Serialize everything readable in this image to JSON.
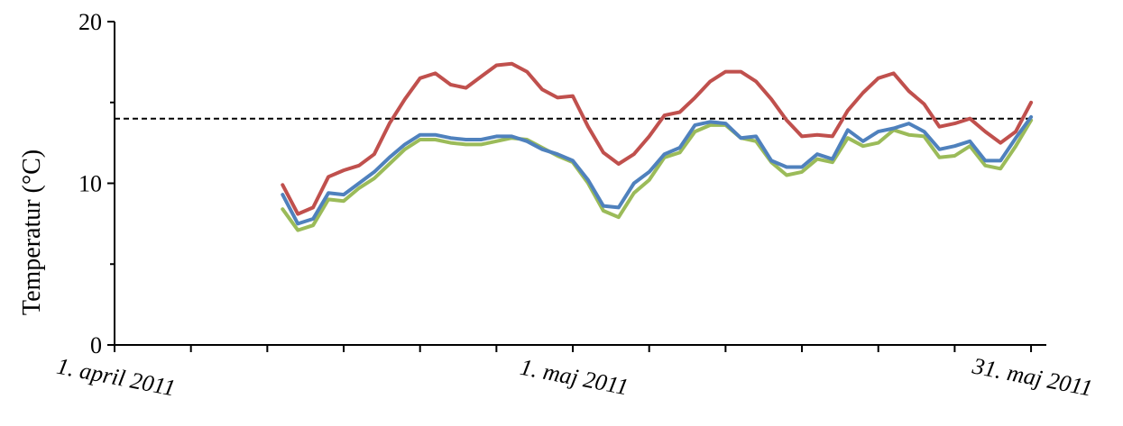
{
  "chart_data": {
    "type": "line",
    "title": "",
    "xlabel": "",
    "ylabel": "Temperatur (°C)",
    "ylim": [
      0,
      20
    ],
    "y_ticks": [
      "0",
      "10",
      "20"
    ],
    "x_range": [
      "2011-04-01",
      "2011-06-01"
    ],
    "x_tick_labels": [
      {
        "date": "2011-04-01",
        "label": "1. april 2011"
      },
      {
        "date": "2011-05-01",
        "label": "1. maj 2011"
      },
      {
        "date": "2011-05-31",
        "label": "31. maj 2011"
      }
    ],
    "grid": false,
    "reference_line": {
      "y": 14.0,
      "style": "dashed",
      "color": "#000000"
    },
    "x": [
      "2011-04-12",
      "2011-04-13",
      "2011-04-14",
      "2011-04-15",
      "2011-04-16",
      "2011-04-17",
      "2011-04-18",
      "2011-04-19",
      "2011-04-20",
      "2011-04-21",
      "2011-04-22",
      "2011-04-23",
      "2011-04-24",
      "2011-04-25",
      "2011-04-26",
      "2011-04-27",
      "2011-04-28",
      "2011-04-29",
      "2011-04-30",
      "2011-05-01",
      "2011-05-02",
      "2011-05-03",
      "2011-05-04",
      "2011-05-05",
      "2011-05-06",
      "2011-05-07",
      "2011-05-08",
      "2011-05-09",
      "2011-05-10",
      "2011-05-11",
      "2011-05-12",
      "2011-05-13",
      "2011-05-14",
      "2011-05-15",
      "2011-05-16",
      "2011-05-17",
      "2011-05-18",
      "2011-05-19",
      "2011-05-20",
      "2011-05-21",
      "2011-05-22",
      "2011-05-23",
      "2011-05-24",
      "2011-05-25",
      "2011-05-26",
      "2011-05-27",
      "2011-05-28",
      "2011-05-29",
      "2011-05-30",
      "2011-05-31"
    ],
    "series": [
      {
        "color": "#c0504d",
        "values": [
          9.9,
          8.1,
          8.5,
          10.4,
          10.8,
          11.1,
          11.8,
          13.7,
          15.2,
          16.5,
          16.8,
          16.1,
          15.9,
          16.6,
          17.3,
          17.4,
          16.9,
          15.8,
          15.3,
          15.4,
          13.5,
          11.9,
          11.2,
          11.8,
          12.9,
          14.2,
          14.4,
          15.3,
          16.3,
          16.9,
          16.9,
          16.3,
          15.2,
          13.9,
          12.9,
          13.0,
          12.9,
          14.5,
          15.6,
          16.5,
          16.8,
          15.7,
          14.9,
          13.5,
          13.7,
          14.0,
          13.2,
          12.5,
          13.2,
          15.0
        ]
      },
      {
        "color": "#9bbb59",
        "values": [
          8.4,
          7.1,
          7.4,
          9.0,
          8.9,
          9.7,
          10.3,
          11.2,
          12.1,
          12.7,
          12.7,
          12.5,
          12.4,
          12.4,
          12.6,
          12.8,
          12.7,
          12.2,
          11.7,
          11.3,
          10.0,
          8.3,
          7.9,
          9.4,
          10.2,
          11.6,
          11.9,
          13.2,
          13.6,
          13.6,
          12.8,
          12.6,
          11.3,
          10.5,
          10.7,
          11.5,
          11.3,
          12.8,
          12.3,
          12.5,
          13.3,
          13.0,
          12.9,
          11.6,
          11.7,
          12.3,
          11.1,
          10.9,
          12.3,
          13.9
        ]
      },
      {
        "color": "#4f81bd",
        "values": [
          9.3,
          7.5,
          7.8,
          9.4,
          9.3,
          10.0,
          10.7,
          11.6,
          12.4,
          13.0,
          13.0,
          12.8,
          12.7,
          12.7,
          12.9,
          12.9,
          12.6,
          12.1,
          11.8,
          11.4,
          10.2,
          8.6,
          8.5,
          10.0,
          10.7,
          11.8,
          12.2,
          13.6,
          13.8,
          13.7,
          12.8,
          12.9,
          11.4,
          11.0,
          11.0,
          11.8,
          11.5,
          13.3,
          12.6,
          13.2,
          13.4,
          13.7,
          13.2,
          12.1,
          12.3,
          12.6,
          11.4,
          11.4,
          12.8,
          14.1
        ]
      }
    ]
  }
}
